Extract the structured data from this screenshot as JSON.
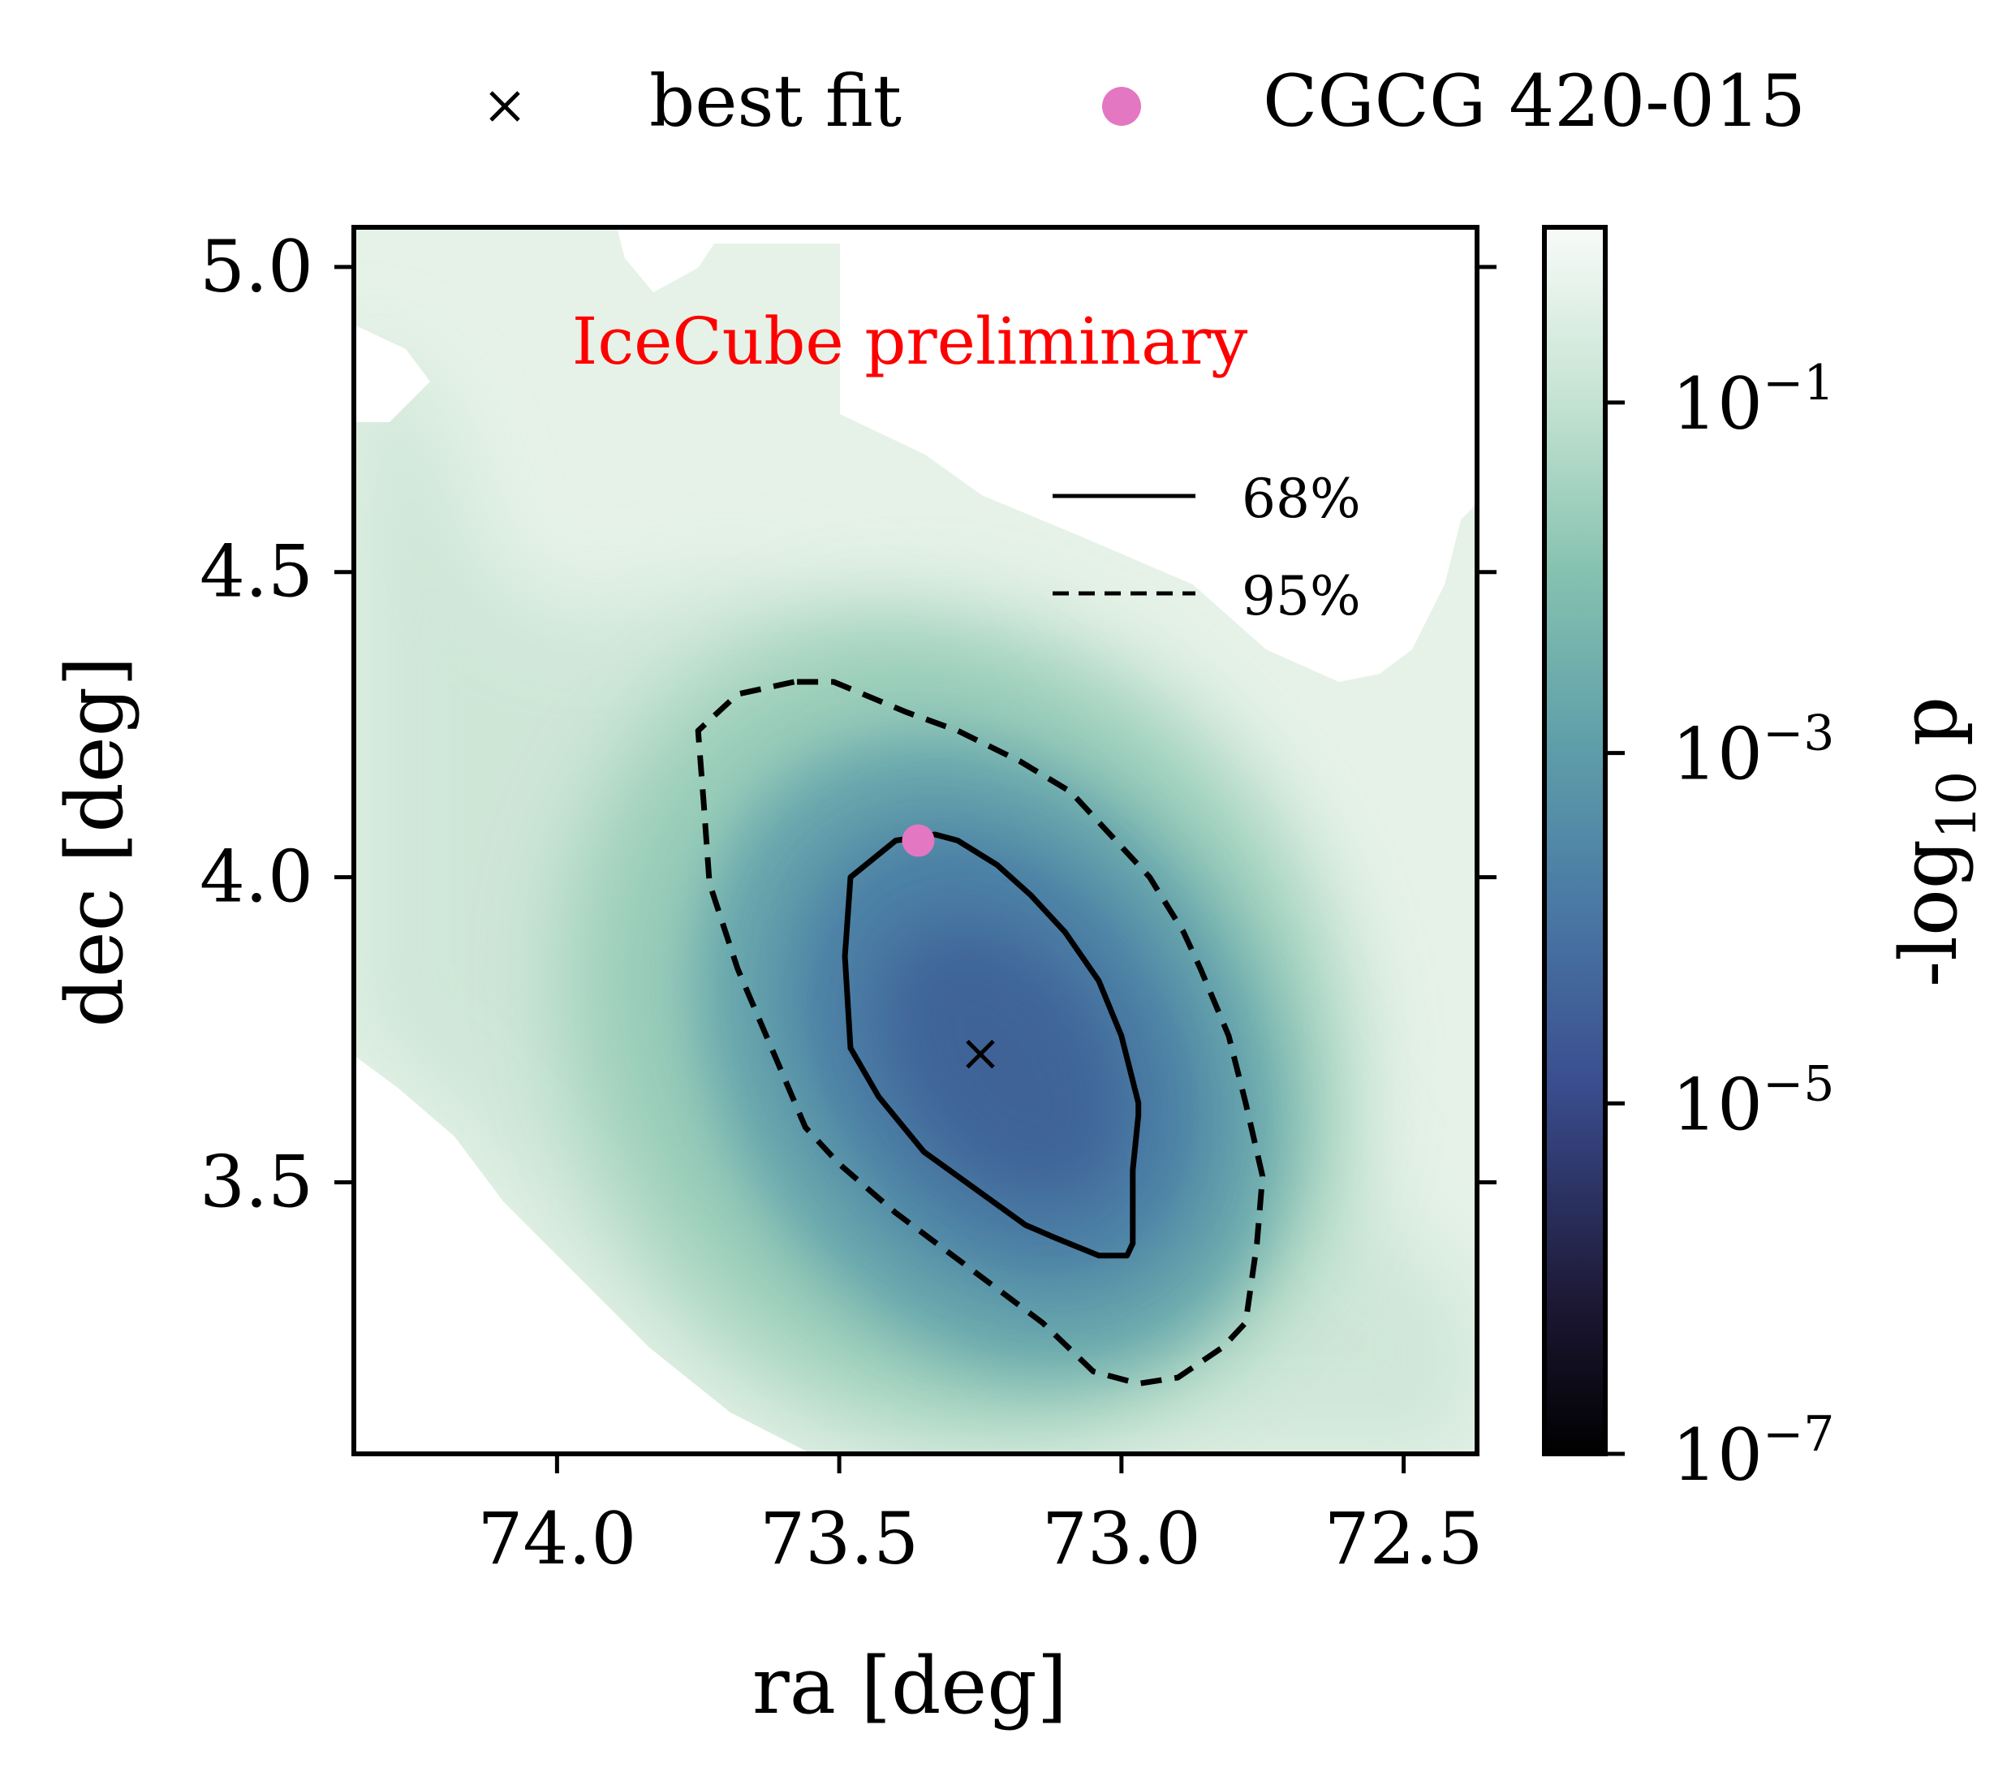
{
  "chart_data": {
    "type": "heatmap",
    "title": "",
    "xlabel": "ra [deg]",
    "ylabel": "dec [deg]",
    "xlim": [
      74.36,
      72.37
    ],
    "ylim": [
      3.055,
      5.065
    ],
    "x_ticks": [
      74.0,
      73.5,
      73.0,
      72.5
    ],
    "x_tick_labels": [
      "74.0",
      "73.5",
      "73.0",
      "72.5"
    ],
    "y_ticks": [
      3.5,
      4.0,
      4.5,
      5.0
    ],
    "y_tick_labels": [
      "3.5",
      "4.0",
      "4.5",
      "5.0"
    ],
    "annotation": "IceCube preliminary",
    "annotation_color": "#ff0000",
    "colorbar": {
      "label": "-log",
      "label_subscript": "10",
      "label_suffix": " p",
      "scale": "log",
      "min": 1e-07,
      "max": 1,
      "ticks": [
        1e-07,
        1e-05,
        0.001,
        0.1
      ],
      "tick_bases": [
        "10",
        "10",
        "10",
        "10"
      ],
      "tick_exponents": [
        "−7",
        "−5",
        "−3",
        "−1"
      ]
    },
    "best_fit": {
      "ra": 73.25,
      "dec": 3.71
    },
    "source": {
      "name": "CGCG 420-015",
      "ra": 73.36,
      "dec": 4.06,
      "color": "#e377c2"
    },
    "legend_top": [
      {
        "label": "best fit",
        "marker": "x"
      },
      {
        "label": "CGCG 420-015",
        "marker": "dot"
      }
    ],
    "contour_legend": [
      {
        "label": "68%",
        "style": "solid"
      },
      {
        "label": "95%",
        "style": "dashed"
      }
    ],
    "contour_68": [
      [
        73.33,
        4.07
      ],
      [
        73.4,
        4.06
      ],
      [
        73.48,
        4.0
      ],
      [
        73.49,
        3.87
      ],
      [
        73.48,
        3.72
      ],
      [
        73.43,
        3.64
      ],
      [
        73.35,
        3.55
      ],
      [
        73.26,
        3.49
      ],
      [
        73.17,
        3.43
      ],
      [
        73.12,
        3.41
      ],
      [
        73.04,
        3.38
      ],
      [
        72.99,
        3.38
      ],
      [
        72.98,
        3.4
      ],
      [
        72.98,
        3.52
      ],
      [
        72.97,
        3.61
      ],
      [
        72.97,
        3.63
      ],
      [
        73.0,
        3.74
      ],
      [
        73.04,
        3.83
      ],
      [
        73.1,
        3.91
      ],
      [
        73.16,
        3.97
      ],
      [
        73.22,
        4.02
      ],
      [
        73.29,
        4.06
      ]
    ],
    "contour_95": [
      [
        73.58,
        4.32
      ],
      [
        73.68,
        4.3
      ],
      [
        73.75,
        4.24
      ],
      [
        73.74,
        4.12
      ],
      [
        73.73,
        3.99
      ],
      [
        73.68,
        3.85
      ],
      [
        73.62,
        3.72
      ],
      [
        73.56,
        3.59
      ],
      [
        73.5,
        3.53
      ],
      [
        73.4,
        3.45
      ],
      [
        73.27,
        3.36
      ],
      [
        73.14,
        3.27
      ],
      [
        73.05,
        3.19
      ],
      [
        72.97,
        3.17
      ],
      [
        72.9,
        3.18
      ],
      [
        72.82,
        3.23
      ],
      [
        72.78,
        3.27
      ],
      [
        72.76,
        3.4
      ],
      [
        72.75,
        3.51
      ],
      [
        72.78,
        3.63
      ],
      [
        72.81,
        3.74
      ],
      [
        72.86,
        3.85
      ],
      [
        72.89,
        3.91
      ],
      [
        72.95,
        4.0
      ],
      [
        73.0,
        4.05
      ],
      [
        73.09,
        4.14
      ],
      [
        73.18,
        4.19
      ],
      [
        73.29,
        4.24
      ],
      [
        73.38,
        4.27
      ],
      [
        73.51,
        4.32
      ]
    ]
  }
}
